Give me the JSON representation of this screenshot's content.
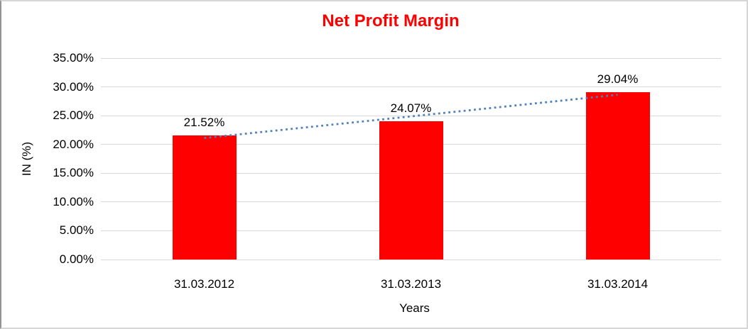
{
  "chart_data": {
    "type": "bar",
    "title": "Net Profit Margin",
    "title_color": "#FF0000",
    "categories": [
      "31.03.2012",
      "31.03.2013",
      "31.03.2014"
    ],
    "values": [
      21.52,
      24.07,
      29.04
    ],
    "data_labels": [
      "21.52%",
      "24.07%",
      "29.04%"
    ],
    "xlabel": "Years",
    "ylabel": "IN (%)",
    "ylim": [
      0,
      35
    ],
    "ytick_step": 5,
    "ytick_labels": [
      "0.00%",
      "5.00%",
      "10.00%",
      "15.00%",
      "20.00%",
      "25.00%",
      "30.00%",
      "35.00%"
    ],
    "grid": true,
    "legend": "none",
    "bar_color": "#FF0000",
    "gridline_color": "#D9D9D9",
    "axis_text_color": "#000000",
    "trendline": {
      "type": "linear",
      "style": "dotted",
      "color": "#4F81BD"
    }
  }
}
